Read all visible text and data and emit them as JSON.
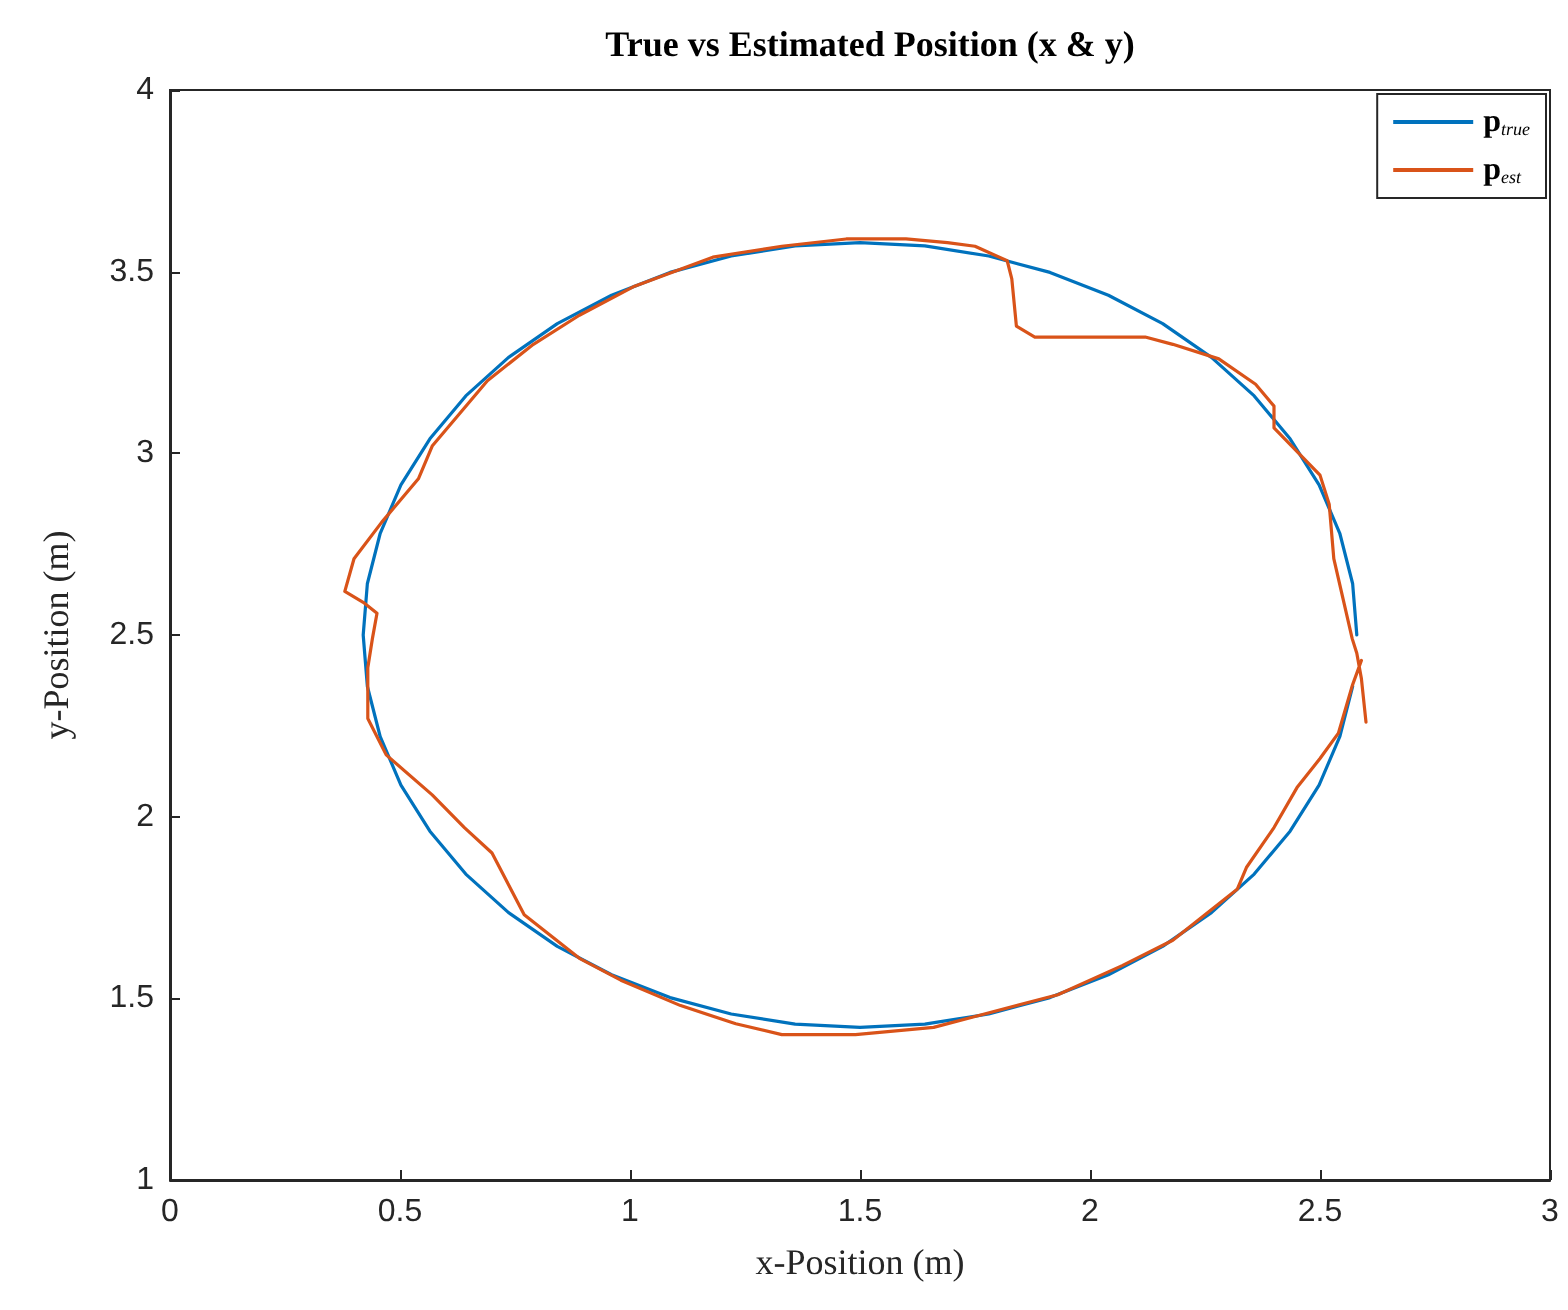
{
  "chart_data": {
    "type": "line",
    "title": "True vs Estimated Position (x & y)",
    "xlabel": "x-Position (m)",
    "ylabel": "y-Position (m)",
    "xlim": [
      0,
      3
    ],
    "xticks": [
      0,
      0.5,
      1,
      1.5,
      2,
      2.5,
      3
    ],
    "ylim": [
      1,
      4
    ],
    "yticks": [
      1,
      1.5,
      2,
      2.5,
      3,
      3.5,
      4
    ],
    "grid": false,
    "legend": "top right",
    "marker": "none",
    "line_style": "solid",
    "series": [
      {
        "name": "p$_{true}$",
        "color": "#0072bd",
        "x": [
          2.58,
          2.571,
          2.543,
          2.498,
          2.435,
          2.357,
          2.264,
          2.158,
          2.04,
          1.913,
          1.78,
          1.641,
          1.5,
          1.359,
          1.22,
          1.087,
          0.96,
          0.842,
          0.736,
          0.643,
          0.565,
          0.502,
          0.457,
          0.429,
          0.42,
          0.429,
          0.457,
          0.502,
          0.565,
          0.643,
          0.736,
          0.842,
          0.96,
          1.087,
          1.22,
          1.359,
          1.5,
          1.641,
          1.78,
          1.913,
          2.04,
          2.158,
          2.264,
          2.357,
          2.435,
          2.498,
          2.543,
          2.571
        ],
        "values": [
          2.5,
          2.641,
          2.78,
          2.913,
          3.04,
          3.158,
          3.264,
          3.357,
          3.435,
          3.498,
          3.543,
          3.571,
          3.58,
          3.571,
          3.543,
          3.498,
          3.435,
          3.357,
          3.264,
          3.158,
          3.04,
          2.913,
          2.78,
          2.641,
          2.5,
          2.359,
          2.22,
          2.087,
          1.96,
          1.842,
          1.736,
          1.643,
          1.565,
          1.502,
          1.457,
          1.429,
          1.42,
          1.429,
          1.457,
          1.502,
          1.565,
          1.643,
          1.736,
          1.842,
          1.96,
          2.087,
          2.22,
          2.359
        ]
      },
      {
        "name": "p$_{est}$",
        "color": "#d95319",
        "x": [
          2.6,
          2.59,
          2.58,
          2.57,
          2.55,
          2.53,
          2.52,
          2.5,
          2.4,
          2.4,
          2.36,
          2.28,
          2.18,
          2.12,
          2.01,
          1.88,
          1.84,
          1.83,
          1.82,
          1.75,
          1.69,
          1.6,
          1.47,
          1.33,
          1.18,
          1.01,
          0.89,
          0.79,
          0.69,
          0.57,
          0.54,
          0.46,
          0.4,
          0.38,
          0.42,
          0.45,
          0.44,
          0.43,
          0.43,
          0.47,
          0.57,
          0.64,
          0.7,
          0.77,
          0.89,
          0.98,
          1.11,
          1.23,
          1.33,
          1.49,
          1.66,
          1.75,
          1.93,
          2.07,
          2.18,
          2.32,
          2.34,
          2.4,
          2.45,
          2.5,
          2.54,
          2.57,
          2.59
        ],
        "values": [
          2.26,
          2.38,
          2.45,
          2.49,
          2.6,
          2.71,
          2.86,
          2.94,
          3.07,
          3.13,
          3.19,
          3.26,
          3.3,
          3.32,
          3.32,
          3.32,
          3.35,
          3.48,
          3.53,
          3.57,
          3.58,
          3.59,
          3.59,
          3.57,
          3.54,
          3.46,
          3.38,
          3.3,
          3.2,
          3.02,
          2.93,
          2.81,
          2.71,
          2.62,
          2.59,
          2.56,
          2.49,
          2.41,
          2.27,
          2.17,
          2.06,
          1.97,
          1.9,
          1.73,
          1.61,
          1.55,
          1.48,
          1.43,
          1.4,
          1.4,
          1.42,
          1.45,
          1.51,
          1.59,
          1.66,
          1.8,
          1.86,
          1.97,
          2.08,
          2.16,
          2.23,
          2.36,
          2.43
        ]
      }
    ]
  }
}
